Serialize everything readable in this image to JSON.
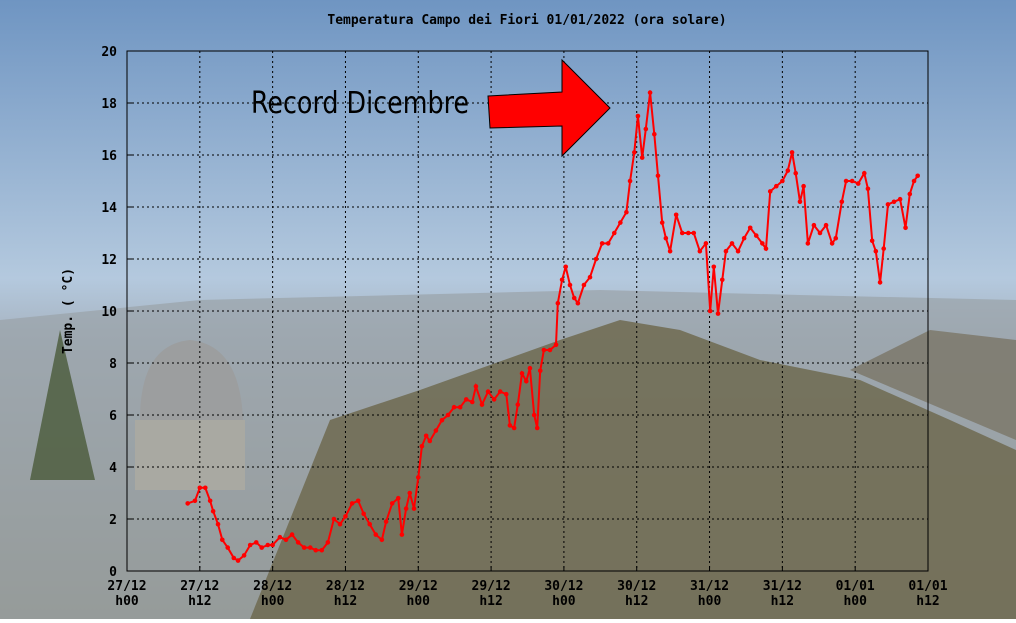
{
  "chart_data": {
    "type": "line",
    "title": "Temperatura Campo dei Fiori 01/01/2022 (ora solare)",
    "y_label": "Temp. ( °C)",
    "annotation": "Record Dicembre",
    "grid": true,
    "color": "#ff0000",
    "xlim": [
      0,
      132
    ],
    "ylim": [
      0,
      20
    ],
    "yticks": [
      0,
      2,
      4,
      6,
      8,
      10,
      12,
      14,
      16,
      18,
      20
    ],
    "xticks": [
      {
        "value": 0,
        "label": [
          "27/12",
          "h00"
        ]
      },
      {
        "value": 12,
        "label": [
          "27/12",
          "h12"
        ]
      },
      {
        "value": 24,
        "label": [
          "28/12",
          "h00"
        ]
      },
      {
        "value": 36,
        "label": [
          "28/12",
          "h12"
        ]
      },
      {
        "value": 48,
        "label": [
          "29/12",
          "h00"
        ]
      },
      {
        "value": 60,
        "label": [
          "29/12",
          "h12"
        ]
      },
      {
        "value": 72,
        "label": [
          "30/12",
          "h00"
        ]
      },
      {
        "value": 84,
        "label": [
          "30/12",
          "h12"
        ]
      },
      {
        "value": 96,
        "label": [
          "31/12",
          "h00"
        ]
      },
      {
        "value": 108,
        "label": [
          "31/12",
          "h12"
        ]
      },
      {
        "value": 120,
        "label": [
          "01/01",
          "h00"
        ]
      },
      {
        "value": 132,
        "label": [
          "01/01",
          "h12"
        ]
      }
    ],
    "x": [
      10,
      11.2,
      12,
      12.9,
      13.7,
      14.2,
      15,
      15.7,
      16.6,
      17.6,
      18.3,
      19.3,
      20.3,
      21.3,
      22.2,
      23.2,
      24,
      25.2,
      26.2,
      27.2,
      28.2,
      29.2,
      30.2,
      31.1,
      32.1,
      33.1,
      34.1,
      35.1,
      36,
      37.1,
      38.1,
      39,
      40,
      41,
      42,
      42.7,
      43.7,
      44.7,
      45.3,
      46,
      46.6,
      47.3,
      48,
      48.6,
      49.3,
      49.9,
      50.9,
      51.9,
      52.9,
      53.9,
      54.9,
      55.9,
      56.9,
      57.5,
      58.5,
      59.5,
      60.5,
      61.5,
      62.5,
      63.1,
      63.8,
      64.4,
      65.1,
      65.8,
      66.4,
      67.1,
      67.6,
      68.1,
      68.7,
      69.7,
      70.7,
      71,
      71.7,
      72.3,
      73,
      73.7,
      74.3,
      75.3,
      76.3,
      77.3,
      78.3,
      79.3,
      80.3,
      81.3,
      82.3,
      82.9,
      83.6,
      84.2,
      84.9,
      85.5,
      86.2,
      86.9,
      87.5,
      88.2,
      88.8,
      89.5,
      90.5,
      91.5,
      92.5,
      93.4,
      94.4,
      95.4,
      96.1,
      96.7,
      97.4,
      98.1,
      98.7,
      99.7,
      100.7,
      101.7,
      102.7,
      103.7,
      104.7,
      105.3,
      106,
      107,
      108,
      108.9,
      109.6,
      110.2,
      110.9,
      111.5,
      112.2,
      113.2,
      114.2,
      115.2,
      116.2,
      116.8,
      117.8,
      118.5,
      119.5,
      120.5,
      121.5,
      122.1,
      122.8,
      123.4,
      124.1,
      124.7,
      125.4,
      126.4,
      127.4,
      128.3,
      129,
      129.7,
      130.3
    ],
    "values": [
      2.6,
      2.7,
      3.2,
      3.2,
      2.7,
      2.3,
      1.8,
      1.2,
      0.9,
      0.5,
      0.4,
      0.6,
      1.0,
      1.1,
      0.9,
      1.0,
      1.0,
      1.3,
      1.2,
      1.4,
      1.1,
      0.9,
      0.9,
      0.8,
      0.8,
      1.1,
      2.0,
      1.8,
      2.1,
      2.6,
      2.7,
      2.2,
      1.8,
      1.4,
      1.2,
      1.9,
      2.6,
      2.8,
      1.4,
      2.4,
      3.0,
      2.4,
      3.6,
      4.8,
      5.2,
      5.0,
      5.4,
      5.8,
      6.0,
      6.3,
      6.3,
      6.6,
      6.5,
      7.1,
      6.4,
      6.9,
      6.6,
      6.9,
      6.8,
      5.6,
      5.5,
      6.4,
      7.6,
      7.3,
      7.8,
      6.0,
      5.5,
      7.7,
      8.5,
      8.5,
      8.7,
      10.3,
      11.2,
      11.7,
      11.0,
      10.5,
      10.3,
      11.0,
      11.3,
      12.0,
      12.6,
      12.6,
      13.0,
      13.4,
      13.8,
      15.0,
      16.1,
      17.5,
      15.9,
      17.0,
      18.4,
      16.8,
      15.2,
      13.4,
      12.8,
      12.3,
      13.7,
      13.0,
      13.0,
      13.0,
      12.3,
      12.6,
      10.0,
      11.7,
      9.9,
      11.2,
      12.3,
      12.6,
      12.3,
      12.8,
      13.2,
      12.9,
      12.6,
      12.4,
      14.6,
      14.8,
      15.0,
      15.4,
      16.1,
      15.3,
      14.2,
      14.8,
      12.6,
      13.3,
      13.0,
      13.3,
      12.6,
      12.8,
      14.2,
      15.0,
      15.0,
      14.9,
      15.3,
      14.7,
      12.7,
      12.3,
      11.1,
      12.4,
      14.1,
      14.2,
      14.3,
      13.2,
      14.5,
      15.0,
      15.2
    ]
  }
}
